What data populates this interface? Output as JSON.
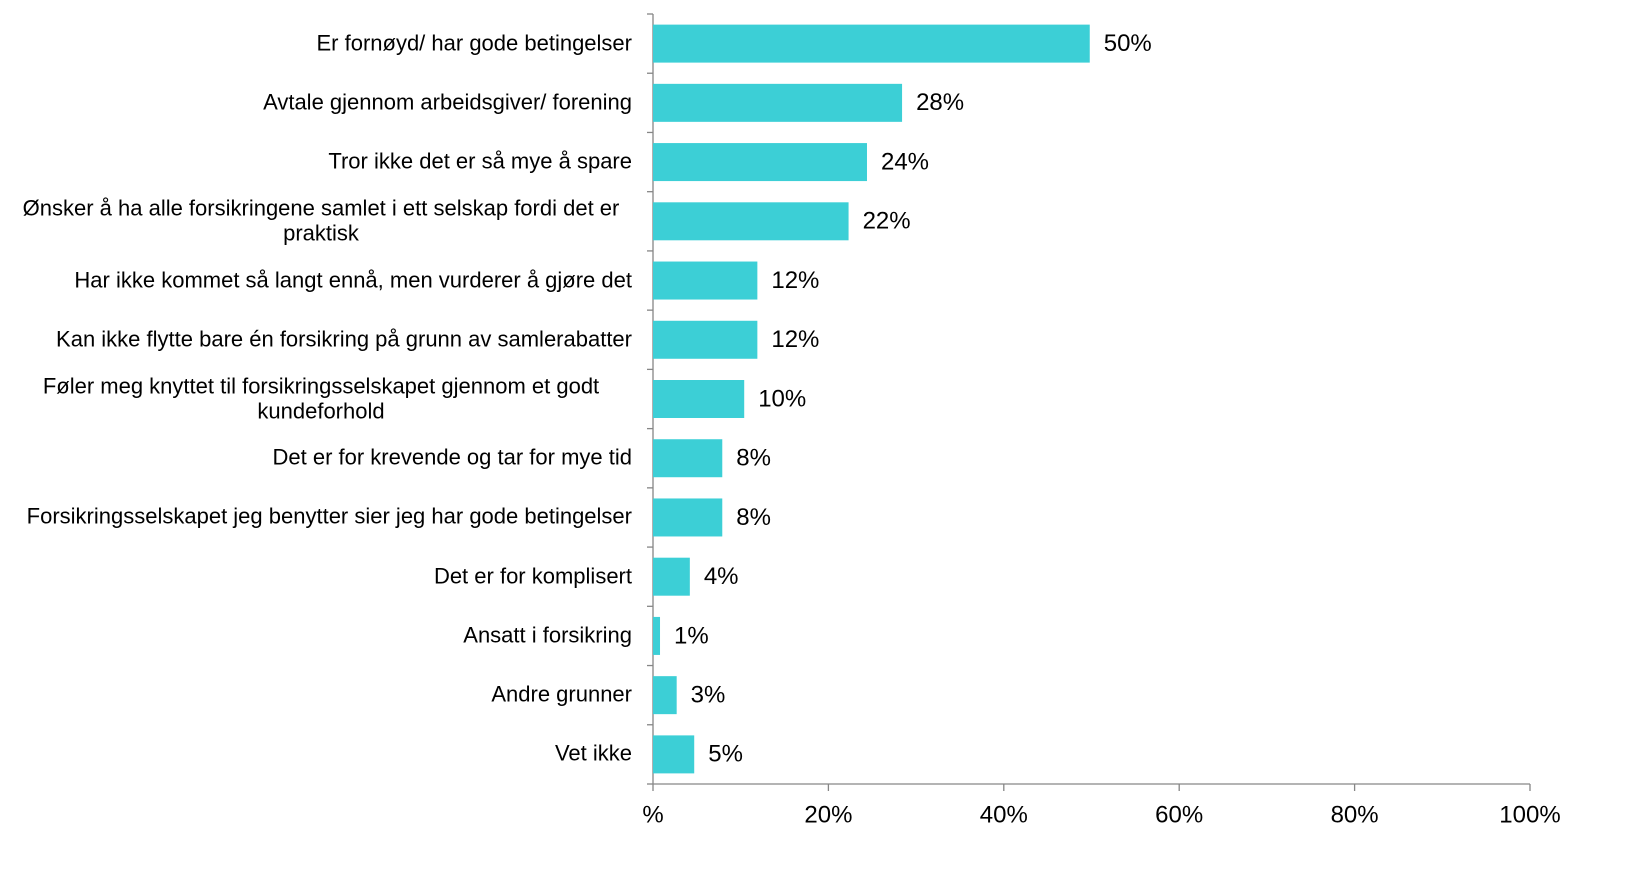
{
  "chart_data": {
    "type": "bar",
    "orientation": "horizontal",
    "categories": [
      "Er fornøyd/ har gode betingelser",
      "Avtale gjennom arbeidsgiver/ forening",
      "Tror ikke det er så mye å spare",
      "Ønsker å ha alle forsikringene samlet i ett selskap fordi det er praktisk",
      "Har ikke kommet så langt ennå, men vurderer å gjøre det",
      "Kan ikke flytte bare én forsikring på grunn av samlerabatter",
      "Føler meg knyttet til forsikringsselskapet gjennom et godt kundeforhold",
      "Det er for krevende og tar for mye tid",
      "Forsikringsselskapet jeg benytter sier jeg har gode betingelser",
      "Det er for komplisert",
      "Ansatt i forsikring",
      "Andre grunner ",
      "Vet ikke"
    ],
    "values": [
      49.8,
      28.4,
      24.4,
      22.3,
      11.9,
      11.9,
      10.4,
      7.9,
      7.9,
      4.2,
      0.8,
      2.7,
      4.7
    ],
    "value_labels": [
      "50%",
      "28%",
      "24%",
      "22%",
      "12%",
      "12%",
      "10%",
      "8%",
      "8%",
      "4%",
      "1%",
      "3%",
      "5%"
    ],
    "color": "#3ccfd6",
    "xlim": [
      0,
      100
    ],
    "xticks": [
      {
        "value": 0,
        "label": "%"
      },
      {
        "value": 20,
        "label": "20%"
      },
      {
        "value": 40,
        "label": "40%"
      },
      {
        "value": 60,
        "label": "60%"
      },
      {
        "value": 80,
        "label": "80%"
      },
      {
        "value": 100,
        "label": "100%"
      }
    ],
    "grid": false
  }
}
